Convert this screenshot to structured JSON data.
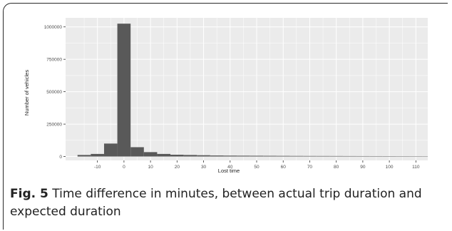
{
  "figure": {
    "caption_label": "Fig. 5",
    "caption_text": " Time difference in minutes, between actual trip duration and expected duration"
  },
  "colors": {
    "panel_bg": "#ebebeb",
    "grid": "#ffffff",
    "bar": "#595959",
    "text": "#4d4d4d"
  },
  "chart_data": {
    "type": "bar",
    "title": "",
    "xlabel": "Lost time",
    "ylabel": "Number of vehicles",
    "xlim": [
      -22,
      122
    ],
    "ylim": [
      -30000,
      1070000
    ],
    "x_ticks": [
      -10,
      0,
      10,
      20,
      30,
      40,
      50,
      60,
      70,
      80,
      90,
      100,
      110
    ],
    "y_ticks": [
      0,
      250000,
      500000,
      750000,
      1000000
    ],
    "bin_width": 5,
    "bin_starts": [
      -17.5,
      -12.5,
      -7.5,
      -2.5,
      2.5,
      7.5,
      12.5,
      17.5,
      22.5,
      27.5,
      32.5,
      37.5,
      42.5,
      47.5,
      52.5,
      57.5,
      62.5,
      67.5,
      72.5,
      77.5,
      82.5,
      87.5,
      92.5,
      97.5,
      102.5,
      107.5,
      112.5
    ],
    "values": [
      12000,
      20000,
      100000,
      1025000,
      72000,
      34000,
      20000,
      14000,
      12000,
      10000,
      8000,
      7000,
      6500,
      6000,
      5500,
      5000,
      4500,
      4200,
      4000,
      3800,
      3500,
      3300,
      3100,
      3000,
      2800,
      2700,
      2600
    ],
    "grid": true
  }
}
